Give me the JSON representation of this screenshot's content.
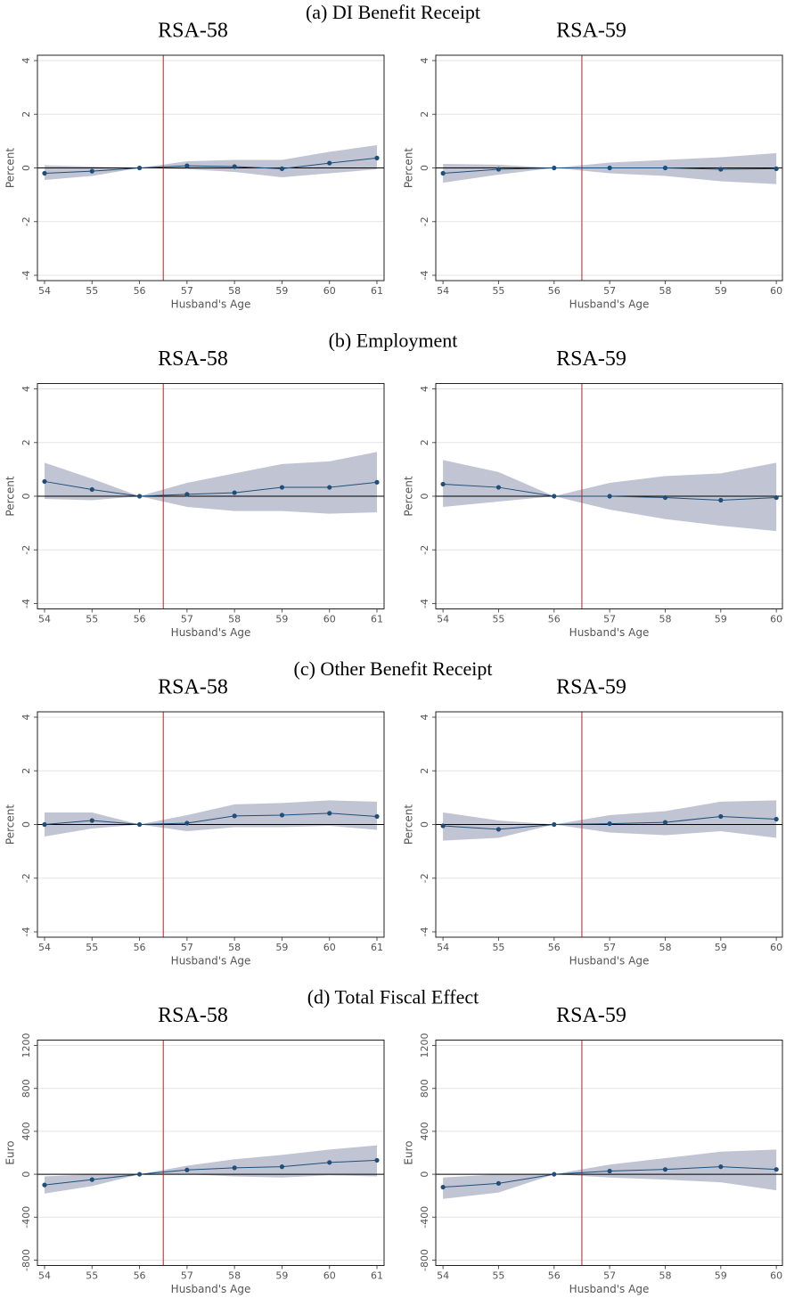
{
  "panel_titles": [
    "(a) DI Benefit Receipt",
    "(b) Employment",
    "(c) Other Benefit Receipt",
    "(d) Total Fiscal Effect"
  ],
  "chart_data": [
    {
      "type": "line",
      "title": "RSA-58",
      "xlabel": "Husband's Age",
      "ylabel": "Percent",
      "x": [
        54,
        55,
        56,
        57,
        58,
        59,
        60,
        61
      ],
      "values": [
        -0.2,
        -0.12,
        0,
        0.08,
        0.05,
        -0.03,
        0.18,
        0.37
      ],
      "ci_lower": [
        -0.45,
        -0.3,
        0,
        -0.05,
        -0.15,
        -0.35,
        -0.2,
        -0.05
      ],
      "ci_upper": [
        0.1,
        0.05,
        0,
        0.25,
        0.3,
        0.3,
        0.6,
        0.85
      ],
      "xlim": [
        53.85,
        61.15
      ],
      "xticks": [
        54,
        55,
        56,
        57,
        58,
        59,
        60,
        61
      ],
      "ylim": [
        -4.2,
        4.2
      ],
      "yticks": [
        -4,
        -2,
        0,
        2,
        4
      ],
      "vline": 56.5,
      "hline": 0,
      "color": "#1f4e79",
      "band_color": "#c1c5d3",
      "vline_color": "#b22222",
      "grid": true
    },
    {
      "type": "line",
      "title": "RSA-59",
      "xlabel": "Husband's Age",
      "ylabel": "Percent",
      "x": [
        54,
        55,
        56,
        57,
        58,
        59,
        60
      ],
      "values": [
        -0.2,
        -0.05,
        0,
        0,
        0,
        -0.05,
        -0.03
      ],
      "ci_lower": [
        -0.55,
        -0.25,
        0,
        -0.2,
        -0.3,
        -0.5,
        -0.6
      ],
      "ci_upper": [
        0.15,
        0.12,
        0,
        0.2,
        0.3,
        0.4,
        0.55
      ],
      "xlim": [
        53.87,
        60.11
      ],
      "xticks": [
        54,
        55,
        56,
        57,
        58,
        59,
        60
      ],
      "ylim": [
        -4.2,
        4.2
      ],
      "yticks": [
        -4,
        -2,
        0,
        2,
        4
      ],
      "vline": 56.5,
      "hline": 0,
      "color": "#1f4e79",
      "band_color": "#c1c5d3",
      "vline_color": "#b22222",
      "grid": true
    },
    {
      "type": "line",
      "title": "RSA-58",
      "xlabel": "Husband's Age",
      "ylabel": "Percent",
      "x": [
        54,
        55,
        56,
        57,
        58,
        59,
        60,
        61
      ],
      "values": [
        0.55,
        0.25,
        0,
        0.07,
        0.13,
        0.33,
        0.33,
        0.52
      ],
      "ci_lower": [
        -0.1,
        -0.15,
        0,
        -0.4,
        -0.55,
        -0.55,
        -0.65,
        -0.6
      ],
      "ci_upper": [
        1.25,
        0.65,
        0,
        0.5,
        0.85,
        1.2,
        1.3,
        1.65
      ],
      "xlim": [
        53.85,
        61.15
      ],
      "xticks": [
        54,
        55,
        56,
        57,
        58,
        59,
        60,
        61
      ],
      "ylim": [
        -4.2,
        4.2
      ],
      "yticks": [
        -4,
        -2,
        0,
        2,
        4
      ],
      "vline": 56.5,
      "hline": 0,
      "color": "#1f4e79",
      "band_color": "#c1c5d3",
      "vline_color": "#b22222",
      "grid": true
    },
    {
      "type": "line",
      "title": "RSA-59",
      "xlabel": "Husband's Age",
      "ylabel": "Percent",
      "x": [
        54,
        55,
        56,
        57,
        58,
        59,
        60
      ],
      "values": [
        0.45,
        0.33,
        0,
        0,
        -0.05,
        -0.15,
        -0.05
      ],
      "ci_lower": [
        -0.4,
        -0.2,
        0,
        -0.5,
        -0.85,
        -1.1,
        -1.3
      ],
      "ci_upper": [
        1.35,
        0.9,
        0,
        0.5,
        0.75,
        0.85,
        1.25
      ],
      "xlim": [
        53.87,
        60.11
      ],
      "xticks": [
        54,
        55,
        56,
        57,
        58,
        59,
        60
      ],
      "ylim": [
        -4.2,
        4.2
      ],
      "yticks": [
        -4,
        -2,
        0,
        2,
        4
      ],
      "vline": 56.5,
      "hline": 0,
      "color": "#1f4e79",
      "band_color": "#c1c5d3",
      "vline_color": "#b22222",
      "grid": true
    },
    {
      "type": "line",
      "title": "RSA-58",
      "xlabel": "Husband's Age",
      "ylabel": "Percent",
      "x": [
        54,
        55,
        56,
        57,
        58,
        59,
        60,
        61
      ],
      "values": [
        0,
        0.15,
        0,
        0.05,
        0.32,
        0.35,
        0.42,
        0.3
      ],
      "ci_lower": [
        -0.45,
        -0.15,
        0,
        -0.25,
        -0.1,
        -0.1,
        -0.05,
        -0.2
      ],
      "ci_upper": [
        0.45,
        0.45,
        0,
        0.35,
        0.75,
        0.8,
        0.9,
        0.85
      ],
      "xlim": [
        53.85,
        61.15
      ],
      "xticks": [
        54,
        55,
        56,
        57,
        58,
        59,
        60,
        61
      ],
      "ylim": [
        -4.2,
        4.2
      ],
      "yticks": [
        -4,
        -2,
        0,
        2,
        4
      ],
      "vline": 56.5,
      "hline": 0,
      "color": "#1f4e79",
      "band_color": "#c1c5d3",
      "vline_color": "#b22222",
      "grid": true
    },
    {
      "type": "line",
      "title": "RSA-59",
      "xlabel": "Husband's Age",
      "ylabel": "Percent",
      "x": [
        54,
        55,
        56,
        57,
        58,
        59,
        60
      ],
      "values": [
        -0.05,
        -0.18,
        0,
        0.03,
        0.08,
        0.3,
        0.2
      ],
      "ci_lower": [
        -0.6,
        -0.5,
        0,
        -0.3,
        -0.4,
        -0.25,
        -0.5
      ],
      "ci_upper": [
        0.45,
        0.15,
        0,
        0.35,
        0.5,
        0.85,
        0.9
      ],
      "xlim": [
        53.87,
        60.11
      ],
      "xticks": [
        54,
        55,
        56,
        57,
        58,
        59,
        60
      ],
      "ylim": [
        -4.2,
        4.2
      ],
      "yticks": [
        -4,
        -2,
        0,
        2,
        4
      ],
      "vline": 56.5,
      "hline": 0,
      "color": "#1f4e79",
      "band_color": "#c1c5d3",
      "vline_color": "#b22222",
      "grid": true
    },
    {
      "type": "line",
      "title": "RSA-58",
      "xlabel": "Husband's Age",
      "ylabel": "Euro",
      "x": [
        54,
        55,
        56,
        57,
        58,
        59,
        60,
        61
      ],
      "values": [
        -100,
        -50,
        0,
        40,
        60,
        70,
        110,
        130
      ],
      "ci_lower": [
        -180,
        -110,
        0,
        0,
        -20,
        -30,
        -10,
        -20
      ],
      "ci_upper": [
        -20,
        0,
        0,
        80,
        140,
        180,
        230,
        270
      ],
      "xlim": [
        53.85,
        61.15
      ],
      "xticks": [
        54,
        55,
        56,
        57,
        58,
        59,
        60,
        61
      ],
      "ylim": [
        -850,
        1250
      ],
      "yticks": [
        -800,
        -400,
        0,
        400,
        800,
        1200
      ],
      "vline": 56.5,
      "hline": 0,
      "color": "#1f4e79",
      "band_color": "#c1c5d3",
      "vline_color": "#b22222",
      "grid": true
    },
    {
      "type": "line",
      "title": "RSA-59",
      "xlabel": "Husband's Age",
      "ylabel": "Euro",
      "x": [
        54,
        55,
        56,
        57,
        58,
        59,
        60
      ],
      "values": [
        -120,
        -85,
        0,
        30,
        45,
        70,
        45
      ],
      "ci_lower": [
        -230,
        -170,
        0,
        -30,
        -50,
        -75,
        -150
      ],
      "ci_upper": [
        -30,
        0,
        0,
        90,
        150,
        210,
        230
      ],
      "xlim": [
        53.87,
        60.11
      ],
      "xticks": [
        54,
        55,
        56,
        57,
        58,
        59,
        60
      ],
      "ylim": [
        -850,
        1250
      ],
      "yticks": [
        -800,
        -400,
        0,
        400,
        800,
        1200
      ],
      "vline": 56.5,
      "hline": 0,
      "color": "#1f4e79",
      "band_color": "#c1c5d3",
      "vline_color": "#b22222",
      "grid": true
    }
  ]
}
